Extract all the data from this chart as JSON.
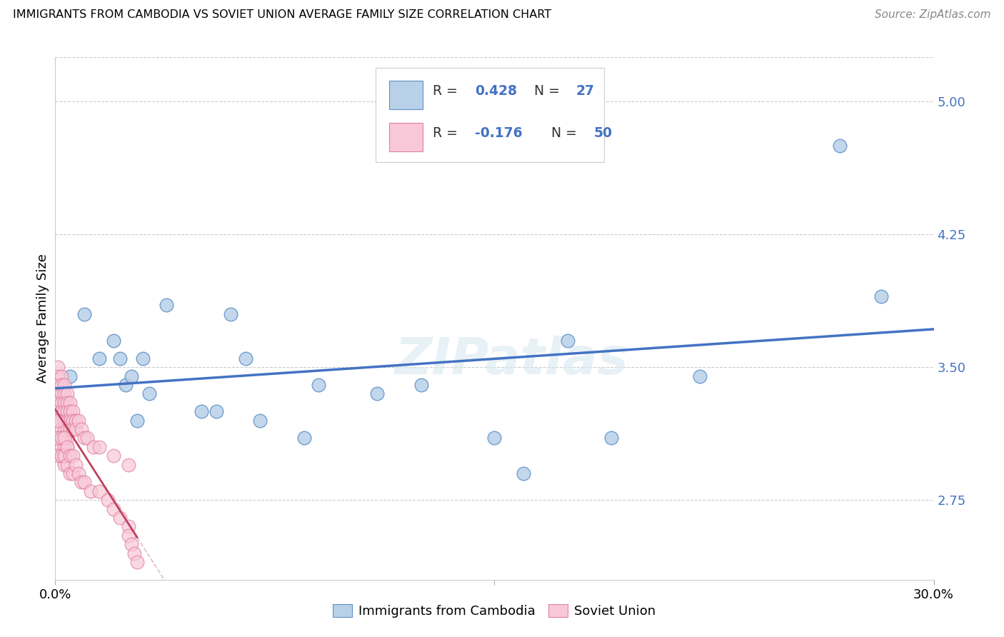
{
  "title": "IMMIGRANTS FROM CAMBODIA VS SOVIET UNION AVERAGE FAMILY SIZE CORRELATION CHART",
  "source": "Source: ZipAtlas.com",
  "ylabel": "Average Family Size",
  "yticks_right": [
    2.75,
    3.5,
    4.25,
    5.0
  ],
  "xlim": [
    0.0,
    0.3
  ],
  "ylim": [
    2.3,
    5.25
  ],
  "legend_label1": "Immigrants from Cambodia",
  "legend_label2": "Soviet Union",
  "R1": 0.428,
  "N1": 27,
  "R2": -0.176,
  "N2": 50,
  "color_cambodia_fill": "#b8d0e8",
  "color_cambodia_edge": "#6090c8",
  "color_soviet_fill": "#f8c8d8",
  "color_soviet_edge": "#e080a0",
  "color_line_cambodia": "#4472c4",
  "color_line_soviet": "#c04060",
  "color_line_dashed": "#d0a0b0",
  "background_color": "#ffffff",
  "watermark": "ZIPatlas",
  "cambodia_x": [
    0.005,
    0.01,
    0.015,
    0.02,
    0.022,
    0.024,
    0.026,
    0.028,
    0.03,
    0.032,
    0.038,
    0.05,
    0.055,
    0.06,
    0.065,
    0.07,
    0.085,
    0.09,
    0.11,
    0.125,
    0.15,
    0.16,
    0.175,
    0.19,
    0.22,
    0.268,
    0.282
  ],
  "cambodia_y": [
    3.45,
    3.8,
    3.55,
    3.65,
    3.55,
    3.4,
    3.45,
    3.2,
    3.55,
    3.35,
    3.85,
    3.25,
    3.25,
    3.8,
    3.55,
    3.2,
    3.1,
    3.4,
    3.35,
    3.4,
    3.1,
    2.9,
    3.65,
    3.1,
    3.45,
    4.75,
    3.9
  ],
  "soviet_x": [
    0.001,
    0.001,
    0.001,
    0.001,
    0.001,
    0.001,
    0.002,
    0.002,
    0.002,
    0.002,
    0.002,
    0.002,
    0.002,
    0.002,
    0.002,
    0.002,
    0.003,
    0.003,
    0.003,
    0.003,
    0.003,
    0.003,
    0.003,
    0.003,
    0.003,
    0.003,
    0.004,
    0.004,
    0.004,
    0.004,
    0.004,
    0.004,
    0.004,
    0.005,
    0.005,
    0.005,
    0.005,
    0.006,
    0.006,
    0.006,
    0.007,
    0.007,
    0.008,
    0.009,
    0.01,
    0.011,
    0.013,
    0.015,
    0.02,
    0.025
  ],
  "soviet_y": [
    3.5,
    3.45,
    3.4,
    3.35,
    3.3,
    3.25,
    3.45,
    3.4,
    3.35,
    3.3,
    3.25,
    3.2,
    3.15,
    3.1,
    3.05,
    3.0,
    3.4,
    3.35,
    3.3,
    3.25,
    3.2,
    3.15,
    3.1,
    3.05,
    3.0,
    2.95,
    3.35,
    3.3,
    3.25,
    3.2,
    3.15,
    3.1,
    3.05,
    3.3,
    3.25,
    3.2,
    3.15,
    3.25,
    3.2,
    3.15,
    3.2,
    3.15,
    3.2,
    3.15,
    3.1,
    3.1,
    3.05,
    3.05,
    3.0,
    2.95
  ],
  "soviet_low_x": [
    0.001,
    0.001,
    0.001,
    0.002,
    0.002,
    0.003,
    0.003,
    0.004,
    0.004,
    0.005,
    0.005,
    0.006,
    0.006,
    0.007,
    0.008,
    0.009,
    0.01,
    0.012,
    0.015,
    0.018,
    0.02,
    0.022,
    0.025,
    0.025,
    0.026,
    0.027,
    0.028
  ],
  "soviet_low_y": [
    3.2,
    3.1,
    3.0,
    3.1,
    3.0,
    3.1,
    3.0,
    3.05,
    2.95,
    3.0,
    2.9,
    3.0,
    2.9,
    2.95,
    2.9,
    2.85,
    2.85,
    2.8,
    2.8,
    2.75,
    2.7,
    2.65,
    2.6,
    2.55,
    2.5,
    2.45,
    2.4
  ]
}
